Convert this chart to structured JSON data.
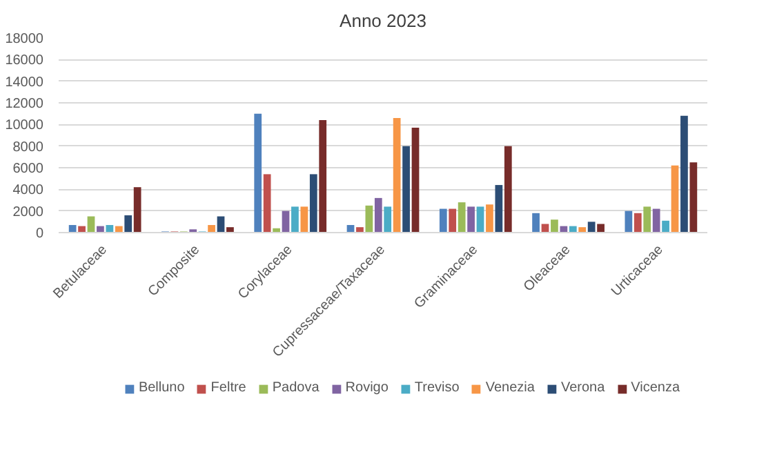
{
  "chart_data": {
    "type": "bar",
    "title": "Anno 2023",
    "categories": [
      "Betulaceae",
      "Composite",
      "Corylaceae",
      "Cupressaceae/Taxaceae",
      "Graminaceae",
      "Oleaceae",
      "Urticaceae"
    ],
    "series": [
      {
        "name": "Belluno",
        "color": "#4f81bd",
        "values": [
          700,
          100,
          11000,
          700,
          2200,
          1800,
          2000
        ]
      },
      {
        "name": "Feltre",
        "color": "#c0504d",
        "values": [
          600,
          100,
          5400,
          500,
          2200,
          800,
          1800
        ]
      },
      {
        "name": "Padova",
        "color": "#9bbb59",
        "values": [
          1500,
          100,
          400,
          2500,
          2800,
          1200,
          2400
        ]
      },
      {
        "name": "Rovigo",
        "color": "#8064a2",
        "values": [
          600,
          300,
          2000,
          3200,
          2400,
          600,
          2200
        ]
      },
      {
        "name": "Treviso",
        "color": "#4bacc6",
        "values": [
          700,
          100,
          2400,
          2400,
          2400,
          600,
          1100
        ]
      },
      {
        "name": "Venezia",
        "color": "#f79646",
        "values": [
          600,
          700,
          2400,
          10600,
          2600,
          500,
          6200
        ]
      },
      {
        "name": "Verona",
        "color": "#2c4d75",
        "values": [
          1600,
          1500,
          5400,
          8000,
          4400,
          1000,
          10800
        ]
      },
      {
        "name": "Vicenza",
        "color": "#772c2a",
        "values": [
          4200,
          500,
          10400,
          9700,
          8000,
          800,
          6500
        ]
      }
    ],
    "ylim": [
      0,
      18000
    ],
    "yticks": [
      0,
      2000,
      4000,
      6000,
      8000,
      10000,
      12000,
      14000,
      16000,
      18000
    ],
    "grid": "y",
    "legend": "bottom"
  }
}
